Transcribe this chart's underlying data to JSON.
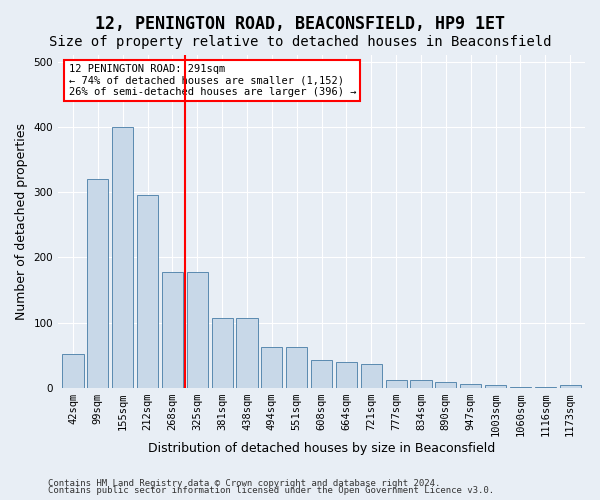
{
  "title": "12, PENINGTON ROAD, BEACONSFIELD, HP9 1ET",
  "subtitle": "Size of property relative to detached houses in Beaconsfield",
  "xlabel": "Distribution of detached houses by size in Beaconsfield",
  "ylabel": "Number of detached properties",
  "footnote1": "Contains HM Land Registry data © Crown copyright and database right 2024.",
  "footnote2": "Contains public sector information licensed under the Open Government Licence v3.0.",
  "categories": [
    "42sqm",
    "99sqm",
    "155sqm",
    "212sqm",
    "268sqm",
    "325sqm",
    "381sqm",
    "438sqm",
    "494sqm",
    "551sqm",
    "608sqm",
    "664sqm",
    "721sqm",
    "777sqm",
    "834sqm",
    "890sqm",
    "947sqm",
    "1003sqm",
    "1060sqm",
    "1116sqm",
    "1173sqm"
  ],
  "values": [
    52,
    320,
    400,
    295,
    178,
    178,
    107,
    107,
    63,
    63,
    42,
    40,
    36,
    12,
    12,
    9,
    6,
    4,
    2,
    1,
    5
  ],
  "bar_color": "#c8d8e8",
  "bar_edgecolor": "#5a8ab0",
  "vline_x_index": 4.5,
  "vline_color": "red",
  "annotation_text": "12 PENINGTON ROAD: 291sqm\n← 74% of detached houses are smaller (1,152)\n26% of semi-detached houses are larger (396) →",
  "annotation_box_color": "white",
  "annotation_box_edgecolor": "red",
  "ylim": [
    0,
    510
  ],
  "background_color": "#e8eef5",
  "plot_background_color": "#e8eef5",
  "grid_color": "white",
  "title_fontsize": 12,
  "subtitle_fontsize": 10,
  "axis_label_fontsize": 9,
  "tick_fontsize": 7.5
}
